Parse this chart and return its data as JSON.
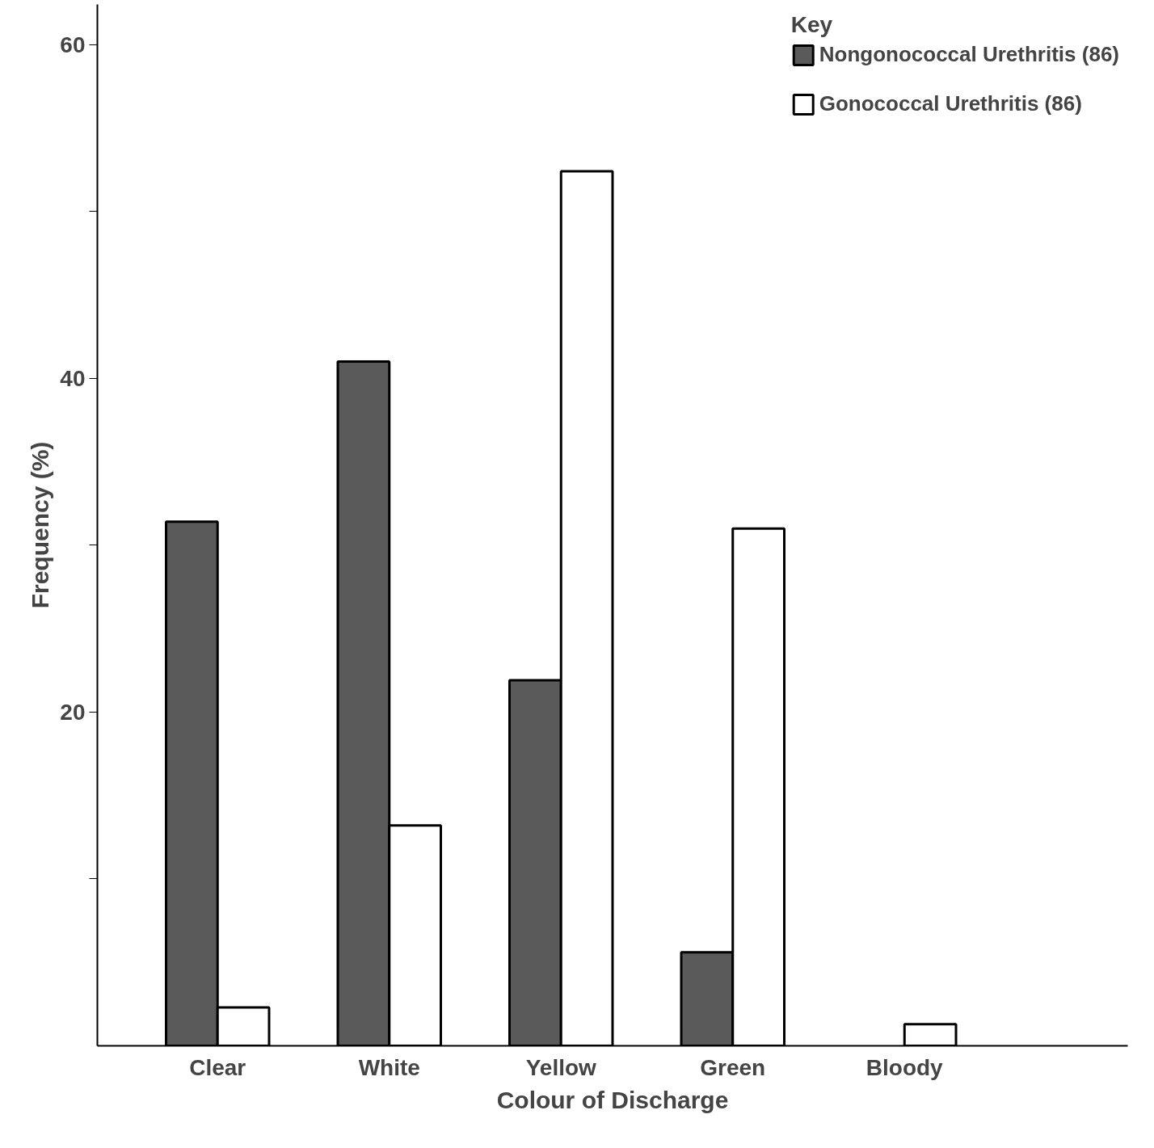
{
  "chart_data": {
    "type": "bar",
    "xlabel": "Colour of Discharge",
    "ylabel": "Frequency (%)",
    "legend_title": "Key",
    "categories": [
      "Clear",
      "White",
      "Yellow",
      "Green",
      "Bloody"
    ],
    "series": [
      {
        "name": "Nongonococcal Urethritis (86)",
        "color": "#5a5a5a",
        "values": [
          31.4,
          41.0,
          21.9,
          5.6,
          null
        ]
      },
      {
        "name": "Gonococcal Urethritis (86)",
        "color": "#ffffff",
        "values": [
          2.3,
          13.2,
          52.4,
          31.0,
          1.3
        ]
      }
    ],
    "ylim": [
      0,
      62.4
    ],
    "yticks": [
      {
        "value": 10,
        "label": null
      },
      20,
      {
        "value": 30,
        "label": null
      },
      40,
      {
        "value": 50,
        "label": null
      },
      60
    ],
    "grid": false,
    "legend": "top right"
  }
}
